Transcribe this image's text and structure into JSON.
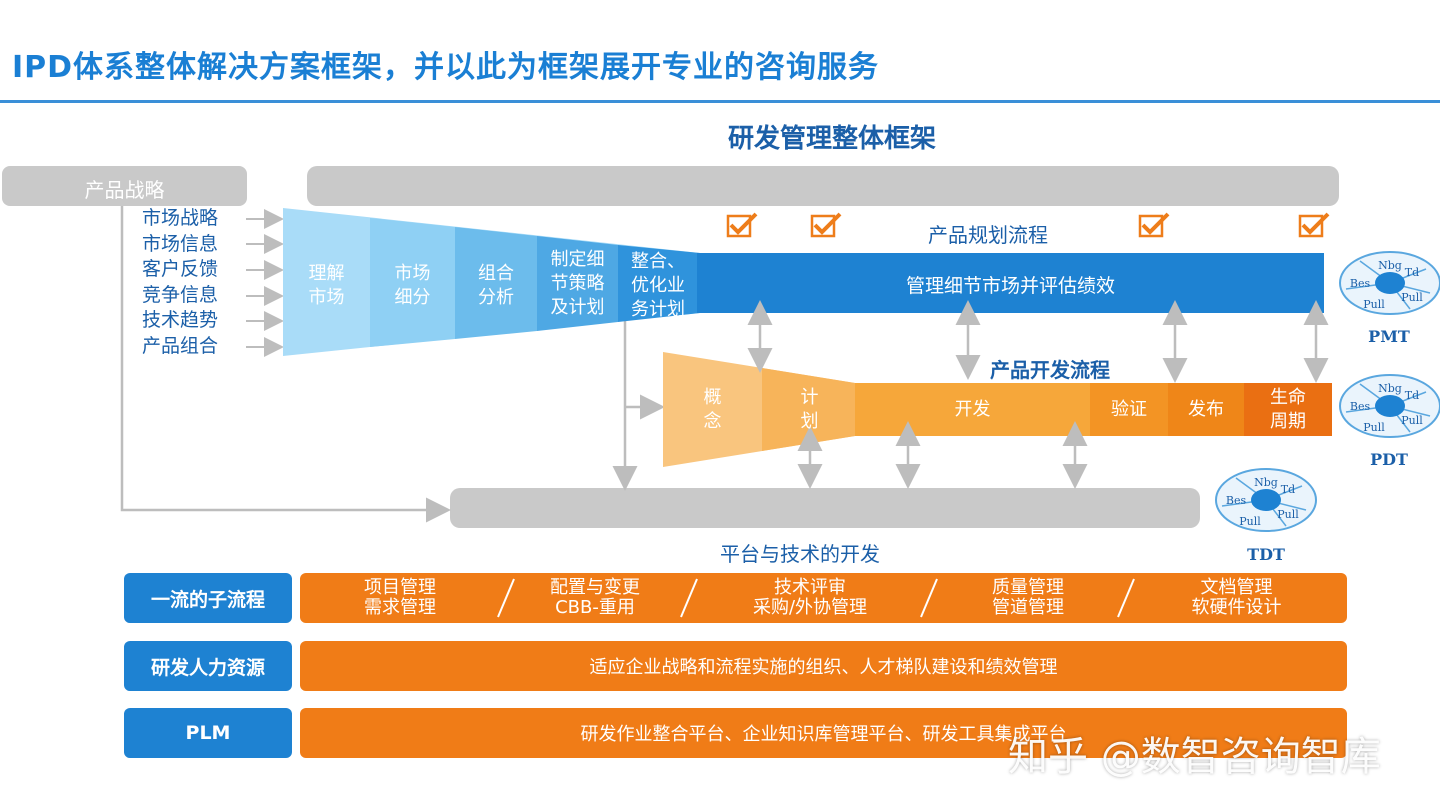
{
  "page": {
    "title": "IPD体系整体解决方案框架，并以此为框架展开专业的咨询服务",
    "subtitle": "研发管理整体框架"
  },
  "strategy": {
    "label": "产品战略",
    "inputs": [
      "市场战略",
      "市场信息",
      "客户反馈",
      "竞争信息",
      "技术趋势",
      "产品组合"
    ]
  },
  "planning": {
    "label": "产品规划流程",
    "stages": [
      {
        "line1": "理解",
        "line2": "市场"
      },
      {
        "line1": "市场",
        "line2": "细分"
      },
      {
        "line1": "组合",
        "line2": "分析"
      },
      {
        "line1": "制定细",
        "line2": "节策略",
        "line3": "及计划"
      },
      {
        "line1": "整合、",
        "line2": "优化业",
        "line3": "务计划"
      }
    ],
    "bar_text": "管理细节市场并评估绩效"
  },
  "development": {
    "label": "产品开发流程",
    "stages": [
      {
        "line1": "概",
        "line2": "念"
      },
      {
        "line1": "计",
        "line2": "划"
      },
      {
        "line1": "开发"
      },
      {
        "line1": "验证"
      },
      {
        "line1": "发布"
      },
      {
        "line1": "生命",
        "line2": "周期"
      }
    ]
  },
  "platform": {
    "label": "平台与技术的开发"
  },
  "teams": [
    {
      "name": "PMT",
      "segments": [
        "Nbg",
        "Td",
        "Bes",
        "Pull",
        "Pull"
      ]
    },
    {
      "name": "PDT",
      "segments": [
        "Nbg",
        "Td",
        "Bes",
        "Pull",
        "Pull"
      ]
    },
    {
      "name": "TDT",
      "segments": [
        "Nbg",
        "Td",
        "Bes",
        "Pull",
        "Pull"
      ]
    }
  ],
  "rows": [
    {
      "label": "一流的子流程",
      "cells": [
        {
          "line1": "项目管理",
          "line2": "需求管理"
        },
        {
          "line1": "配置与变更",
          "line2": "CBB-重用"
        },
        {
          "line1": "技术评审",
          "line2": "采购/外协管理"
        },
        {
          "line1": "质量管理",
          "line2": "管道管理"
        },
        {
          "line1": "文档管理",
          "line2": "软硬件设计"
        }
      ]
    },
    {
      "label": "研发人力资源",
      "text": "适应企业战略和流程实施的组织、人才梯队建设和绩效管理"
    },
    {
      "label": "PLM",
      "text": "研发作业整合平台、企业知识库管理平台、研发工具集成平台"
    }
  ],
  "watermark": "知乎 @数智咨询智库",
  "colors": {
    "title_blue": "#1a7fd4",
    "planning_bar": "#1e82d2",
    "funnel_light": "#a9dcf8",
    "dev_light": "#f9c57e",
    "dev_dark": "#ee7d1a",
    "row_orange": "#f07c17",
    "gray": "#c9c9c9",
    "check": "#ee7d1a"
  }
}
